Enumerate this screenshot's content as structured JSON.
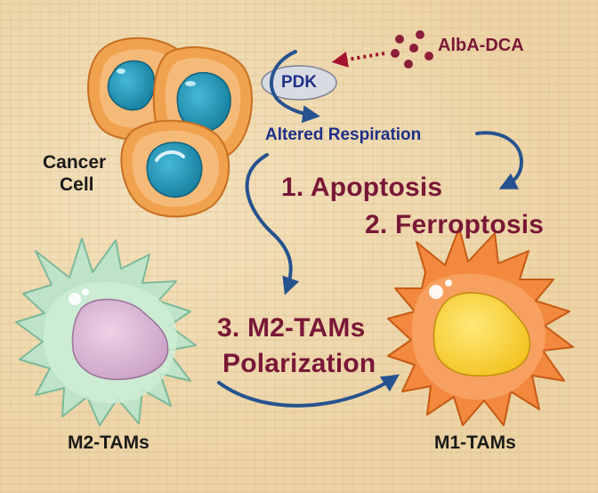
{
  "labels": {
    "drug": "AlbA-DCA",
    "enzyme": "PDK",
    "altered": "Altered Respiration",
    "cancer_line1": "Cancer",
    "cancer_line2": "Cell",
    "step1": "1. Apoptosis",
    "step2": "2. Ferroptosis",
    "step3_line1": "3. M2-TAMs",
    "step3_line2": "Polarization",
    "m2": "M2-TAMs",
    "m1": "M1-TAMs"
  },
  "colors": {
    "maroon": "#7a1737",
    "blue": "#1d2f8a",
    "arrow": "#26538f",
    "cancer_cell": "#f0a24e",
    "nucleus": "#1e8fb0",
    "m2_cell": "#bfe3c8",
    "m1_cell": "#f3893e"
  }
}
